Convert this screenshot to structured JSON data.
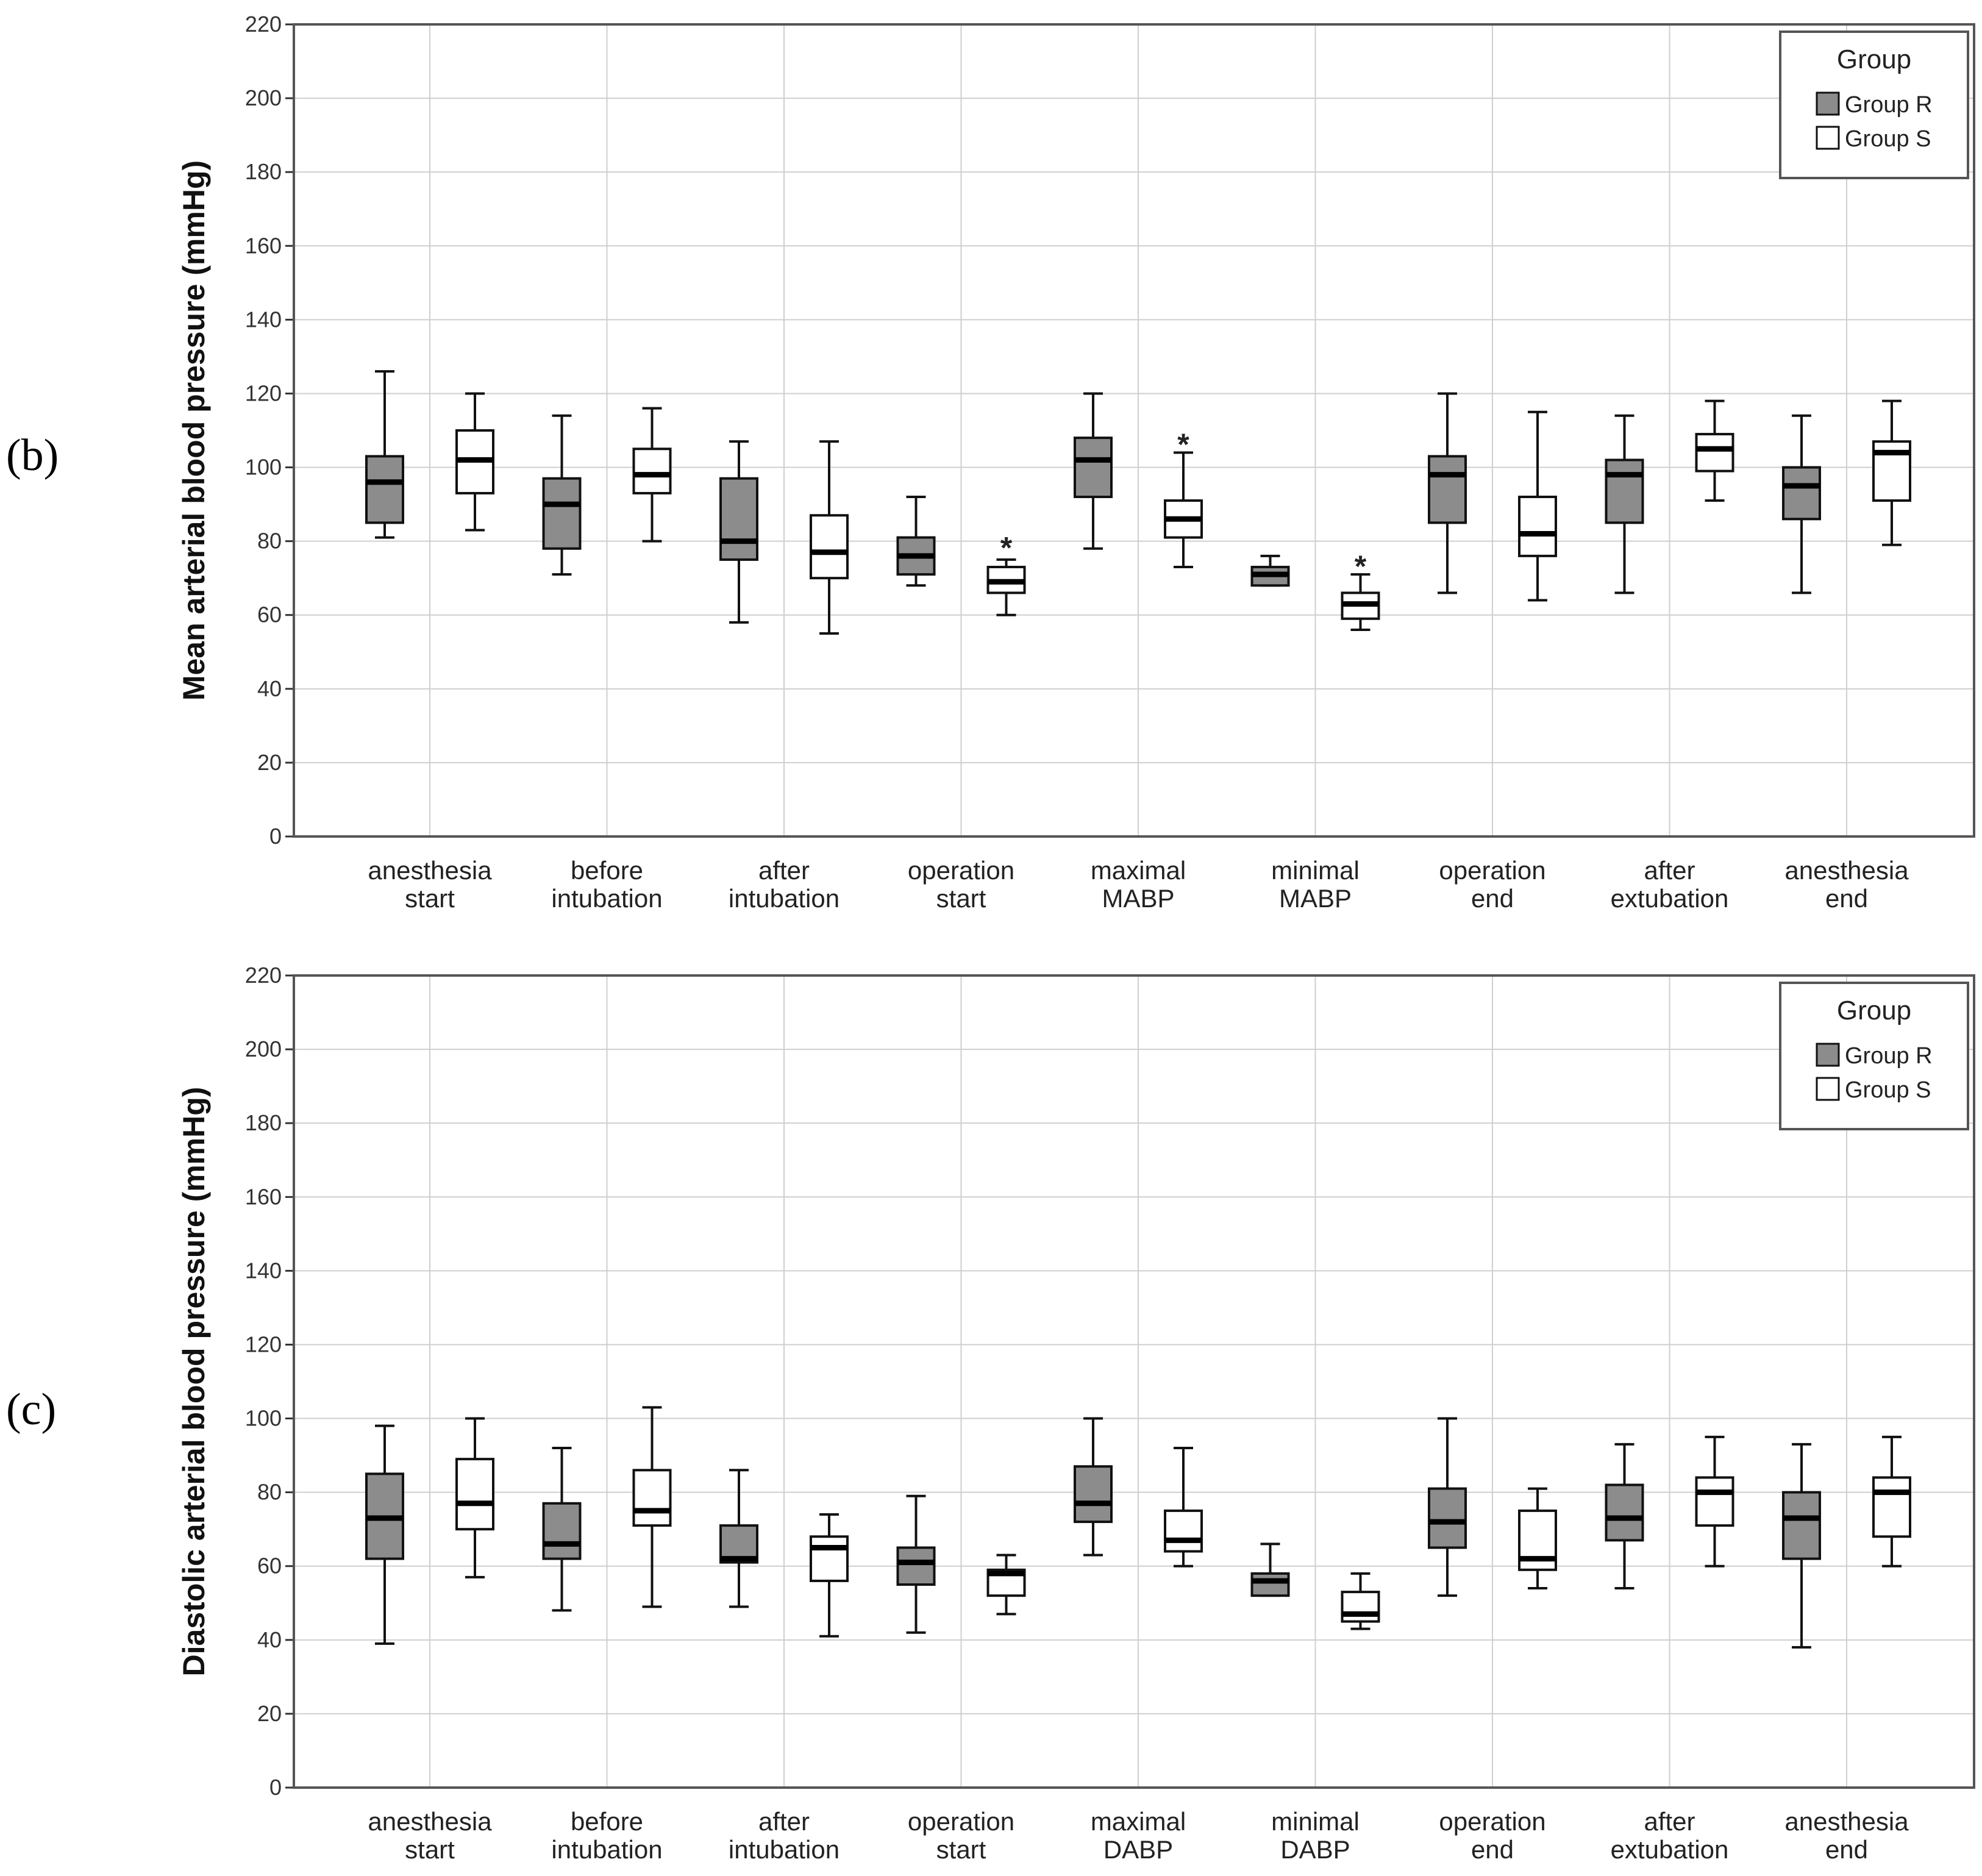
{
  "chart_data": [
    {
      "type": "boxplot",
      "panel_label": "(b)",
      "ylabel": "Mean arterial blood pressure (mmHg)",
      "ylim": [
        0,
        220
      ],
      "yticks": [
        "0",
        "20",
        "40",
        "60",
        "80",
        "100",
        "120",
        "140",
        "160",
        "180",
        "200",
        "220"
      ],
      "grid": true,
      "categories": [
        [
          "anesthesia",
          "start"
        ],
        [
          "before",
          "intubation"
        ],
        [
          "after",
          "intubation"
        ],
        [
          "operation",
          "start"
        ],
        [
          "maximal",
          "MABP"
        ],
        [
          "minimal",
          "MABP"
        ],
        [
          "operation",
          "end"
        ],
        [
          "after",
          "extubation"
        ],
        [
          "anesthesia",
          "end"
        ]
      ],
      "legend": {
        "title": "Group",
        "position": "top-right",
        "entries": [
          "Group R",
          "Group S"
        ]
      },
      "series": [
        {
          "name": "Group R",
          "color": "#8c8c8c",
          "boxes": [
            {
              "min": 81,
              "q1": 85,
              "median": 96,
              "q3": 103,
              "max": 126
            },
            {
              "min": 71,
              "q1": 78,
              "median": 90,
              "q3": 97,
              "max": 114
            },
            {
              "min": 58,
              "q1": 75,
              "median": 80,
              "q3": 97,
              "max": 107
            },
            {
              "min": 68,
              "q1": 71,
              "median": 76,
              "q3": 81,
              "max": 92
            },
            {
              "min": 78,
              "q1": 92,
              "median": 102,
              "q3": 108,
              "max": 120
            },
            {
              "min": 68,
              "q1": 68,
              "median": 71,
              "q3": 73,
              "max": 76
            },
            {
              "min": 66,
              "q1": 85,
              "median": 98,
              "q3": 103,
              "max": 120
            },
            {
              "min": 66,
              "q1": 85,
              "median": 98,
              "q3": 102,
              "max": 114
            },
            {
              "min": 66,
              "q1": 86,
              "median": 95,
              "q3": 100,
              "max": 114
            }
          ]
        },
        {
          "name": "Group S",
          "color": "#ffffff",
          "boxes": [
            {
              "min": 83,
              "q1": 93,
              "median": 102,
              "q3": 110,
              "max": 120
            },
            {
              "min": 80,
              "q1": 93,
              "median": 98,
              "q3": 105,
              "max": 116
            },
            {
              "min": 55,
              "q1": 70,
              "median": 77,
              "q3": 87,
              "max": 107
            },
            {
              "min": 60,
              "q1": 66,
              "median": 69,
              "q3": 73,
              "max": 75
            },
            {
              "min": 73,
              "q1": 81,
              "median": 86,
              "q3": 91,
              "max": 104
            },
            {
              "min": 56,
              "q1": 59,
              "median": 63,
              "q3": 66,
              "max": 71
            },
            {
              "min": 64,
              "q1": 76,
              "median": 82,
              "q3": 92,
              "max": 115
            },
            {
              "min": 91,
              "q1": 99,
              "median": 105,
              "q3": 109,
              "max": 118
            },
            {
              "min": 79,
              "q1": 91,
              "median": 104,
              "q3": 107,
              "max": 118
            }
          ]
        }
      ],
      "annotations": [
        {
          "text": "*",
          "category": 3,
          "group": 1,
          "value": 79
        },
        {
          "text": "*",
          "category": 4,
          "group": 1,
          "value": 107
        },
        {
          "text": "*",
          "category": 5,
          "group": 1,
          "value": 74
        }
      ]
    },
    {
      "type": "boxplot",
      "panel_label": "(c)",
      "ylabel": "Diastolic arterial blood pressure (mmHg)",
      "ylim": [
        0,
        220
      ],
      "yticks": [
        "0",
        "20",
        "40",
        "60",
        "80",
        "100",
        "120",
        "140",
        "160",
        "180",
        "200",
        "220"
      ],
      "grid": true,
      "categories": [
        [
          "anesthesia",
          "start"
        ],
        [
          "before",
          "intubation"
        ],
        [
          "after",
          "intubation"
        ],
        [
          "operation",
          "start"
        ],
        [
          "maximal",
          "DABP"
        ],
        [
          "minimal",
          "DABP"
        ],
        [
          "operation",
          "end"
        ],
        [
          "after",
          "extubation"
        ],
        [
          "anesthesia",
          "end"
        ]
      ],
      "legend": {
        "title": "Group",
        "position": "top-right",
        "entries": [
          "Group R",
          "Group S"
        ]
      },
      "series": [
        {
          "name": "Group R",
          "color": "#8c8c8c",
          "boxes": [
            {
              "min": 39,
              "q1": 62,
              "median": 73,
              "q3": 85,
              "max": 98
            },
            {
              "min": 48,
              "q1": 62,
              "median": 66,
              "q3": 77,
              "max": 92
            },
            {
              "min": 49,
              "q1": 61,
              "median": 62,
              "q3": 71,
              "max": 86
            },
            {
              "min": 42,
              "q1": 55,
              "median": 61,
              "q3": 65,
              "max": 79
            },
            {
              "min": 63,
              "q1": 72,
              "median": 77,
              "q3": 87,
              "max": 100
            },
            {
              "min": 52,
              "q1": 52,
              "median": 56,
              "q3": 58,
              "max": 66
            },
            {
              "min": 52,
              "q1": 65,
              "median": 72,
              "q3": 81,
              "max": 100
            },
            {
              "min": 54,
              "q1": 67,
              "median": 73,
              "q3": 82,
              "max": 93
            },
            {
              "min": 38,
              "q1": 62,
              "median": 73,
              "q3": 80,
              "max": 93
            }
          ]
        },
        {
          "name": "Group S",
          "color": "#ffffff",
          "boxes": [
            {
              "min": 57,
              "q1": 70,
              "median": 77,
              "q3": 89,
              "max": 100
            },
            {
              "min": 49,
              "q1": 71,
              "median": 75,
              "q3": 86,
              "max": 103
            },
            {
              "min": 41,
              "q1": 56,
              "median": 65,
              "q3": 68,
              "max": 74
            },
            {
              "min": 47,
              "q1": 52,
              "median": 58,
              "q3": 59,
              "max": 63
            },
            {
              "min": 60,
              "q1": 64,
              "median": 67,
              "q3": 75,
              "max": 92
            },
            {
              "min": 43,
              "q1": 45,
              "median": 47,
              "q3": 53,
              "max": 58
            },
            {
              "min": 54,
              "q1": 59,
              "median": 62,
              "q3": 75,
              "max": 81
            },
            {
              "min": 60,
              "q1": 71,
              "median": 80,
              "q3": 84,
              "max": 95
            },
            {
              "min": 60,
              "q1": 68,
              "median": 80,
              "q3": 84,
              "max": 95
            }
          ]
        }
      ],
      "annotations": []
    }
  ]
}
